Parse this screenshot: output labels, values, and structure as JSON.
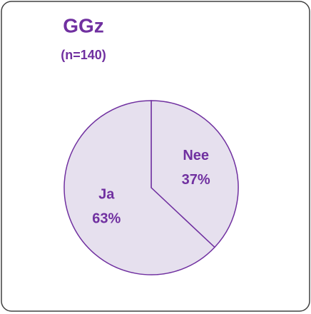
{
  "chart_data": {
    "type": "pie",
    "title": "GGz",
    "subtitle": "(n=140)",
    "categories": [
      "Nee",
      "Ja"
    ],
    "values": [
      37,
      63
    ],
    "value_labels": [
      "37%",
      "63%"
    ],
    "colors": [
      "#e6e0ee",
      "#e6e0ee"
    ],
    "stroke": "#7030a0",
    "text_color": "#7030a0"
  }
}
